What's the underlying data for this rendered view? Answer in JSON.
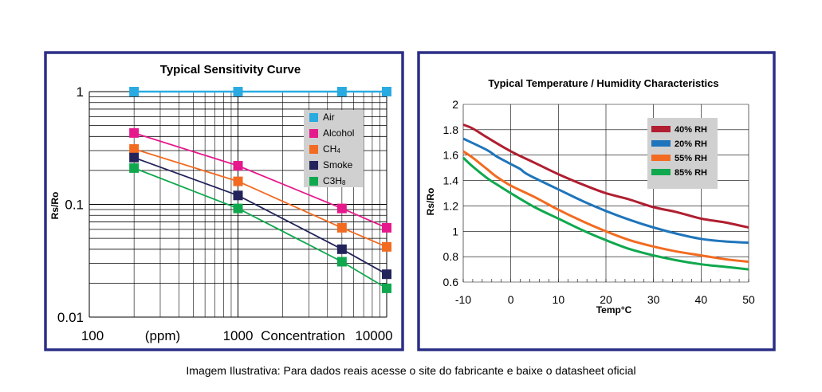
{
  "caption": "Imagem Ilustrativa: Para dados reais acesse o site do fabricante e baixe o datasheet  oficial",
  "colors": {
    "frame": "#2b2f86",
    "air": "#29abe2",
    "alcohol": "#e6198c",
    "ch4": "#f26b21",
    "smoke": "#23235b",
    "c3h8": "#10a84e",
    "rh40": "#b01e30",
    "rh20": "#1f75bb",
    "rh55": "#f26b21",
    "rh85": "#10a84e",
    "legend_bg": "#d0d0d0"
  },
  "chart_data": [
    {
      "type": "line",
      "title": "Typical Sensitivity Curve",
      "xlabel": "Concentration",
      "xunit": "(ppm)",
      "ylabel": "Rs/Ro",
      "xscale": "log",
      "yscale": "log",
      "xlim": [
        100,
        10000
      ],
      "ylim": [
        0.01,
        1
      ],
      "xticks": [
        {
          "value": 100,
          "label": "100"
        },
        {
          "value": 1000,
          "label": "1000"
        },
        {
          "value": 10000,
          "label": "10000"
        }
      ],
      "yticks": [
        {
          "value": 1,
          "label": "1"
        },
        {
          "value": 0.1,
          "label": "0.1"
        },
        {
          "value": 0.01,
          "label": "0.01"
        }
      ],
      "legend": "top-right",
      "series": [
        {
          "name": "Air",
          "label": "Air",
          "color_key": "air",
          "x": [
            200,
            1000,
            5000,
            10000
          ],
          "y": [
            1.0,
            1.0,
            1.0,
            1.0
          ]
        },
        {
          "name": "Alcohol",
          "label": "Alcohol",
          "color_key": "alcohol",
          "x": [
            200,
            1000,
            5000,
            10000
          ],
          "y": [
            0.43,
            0.22,
            0.092,
            0.062
          ]
        },
        {
          "name": "CH4",
          "label": "CH",
          "sub": "4",
          "color_key": "ch4",
          "x": [
            200,
            1000,
            5000,
            10000
          ],
          "y": [
            0.31,
            0.16,
            0.062,
            0.042
          ]
        },
        {
          "name": "Smoke",
          "label": "Smoke",
          "color_key": "smoke",
          "x": [
            200,
            1000,
            5000,
            10000
          ],
          "y": [
            0.26,
            0.12,
            0.04,
            0.024
          ]
        },
        {
          "name": "C3H8",
          "label": "C3H",
          "sub": "8",
          "color_key": "c3h8",
          "x": [
            200,
            1000,
            5000,
            10000
          ],
          "y": [
            0.21,
            0.092,
            0.031,
            0.018
          ]
        }
      ]
    },
    {
      "type": "line",
      "title": "Typical Temperature / Humidity Characteristics",
      "xlabel": "Temp°C",
      "ylabel": "Rs/Ro",
      "xlim": [
        -10,
        50
      ],
      "ylim": [
        0.6,
        2.0
      ],
      "xticks": [
        -10,
        0,
        10,
        20,
        30,
        40,
        50
      ],
      "yticks": [
        {
          "value": 2.0,
          "label": "2"
        },
        {
          "value": 1.8,
          "label": "1.8"
        },
        {
          "value": 1.6,
          "label": "1.6"
        },
        {
          "value": 1.4,
          "label": "1.4"
        },
        {
          "value": 1.2,
          "label": "1.2"
        },
        {
          "value": 1.0,
          "label": "1"
        },
        {
          "value": 0.8,
          "label": "0.8"
        },
        {
          "value": 0.6,
          "label": "0.6"
        }
      ],
      "legend": "top-right",
      "series": [
        {
          "name": "40% RH",
          "color_key": "rh40",
          "x": [
            -10,
            -8,
            -5,
            0,
            5,
            10,
            15,
            20,
            25,
            30,
            35,
            40,
            45,
            50
          ],
          "y": [
            1.84,
            1.81,
            1.74,
            1.63,
            1.54,
            1.45,
            1.37,
            1.3,
            1.25,
            1.19,
            1.15,
            1.1,
            1.07,
            1.03
          ]
        },
        {
          "name": "20% RH",
          "color_key": "rh20",
          "x": [
            -10,
            -5,
            -3,
            0,
            2,
            3,
            5,
            10,
            15,
            20,
            25,
            30,
            35,
            40,
            45,
            50
          ],
          "y": [
            1.73,
            1.64,
            1.59,
            1.53,
            1.49,
            1.46,
            1.42,
            1.33,
            1.24,
            1.16,
            1.09,
            1.03,
            0.98,
            0.94,
            0.92,
            0.91
          ]
        },
        {
          "name": "55% RH",
          "color_key": "rh55",
          "x": [
            -10,
            -8,
            -5,
            -3,
            0,
            5,
            10,
            15,
            20,
            25,
            30,
            35,
            40,
            45,
            50
          ],
          "y": [
            1.63,
            1.58,
            1.49,
            1.43,
            1.36,
            1.27,
            1.17,
            1.08,
            1.0,
            0.93,
            0.88,
            0.84,
            0.81,
            0.78,
            0.76
          ]
        },
        {
          "name": "85% RH",
          "color_key": "rh85",
          "x": [
            -10,
            -8,
            -5,
            -3,
            0,
            5,
            10,
            15,
            20,
            25,
            30,
            35,
            40,
            45,
            50
          ],
          "y": [
            1.58,
            1.51,
            1.42,
            1.37,
            1.3,
            1.19,
            1.1,
            1.01,
            0.93,
            0.86,
            0.81,
            0.77,
            0.74,
            0.72,
            0.7
          ]
        }
      ]
    }
  ]
}
